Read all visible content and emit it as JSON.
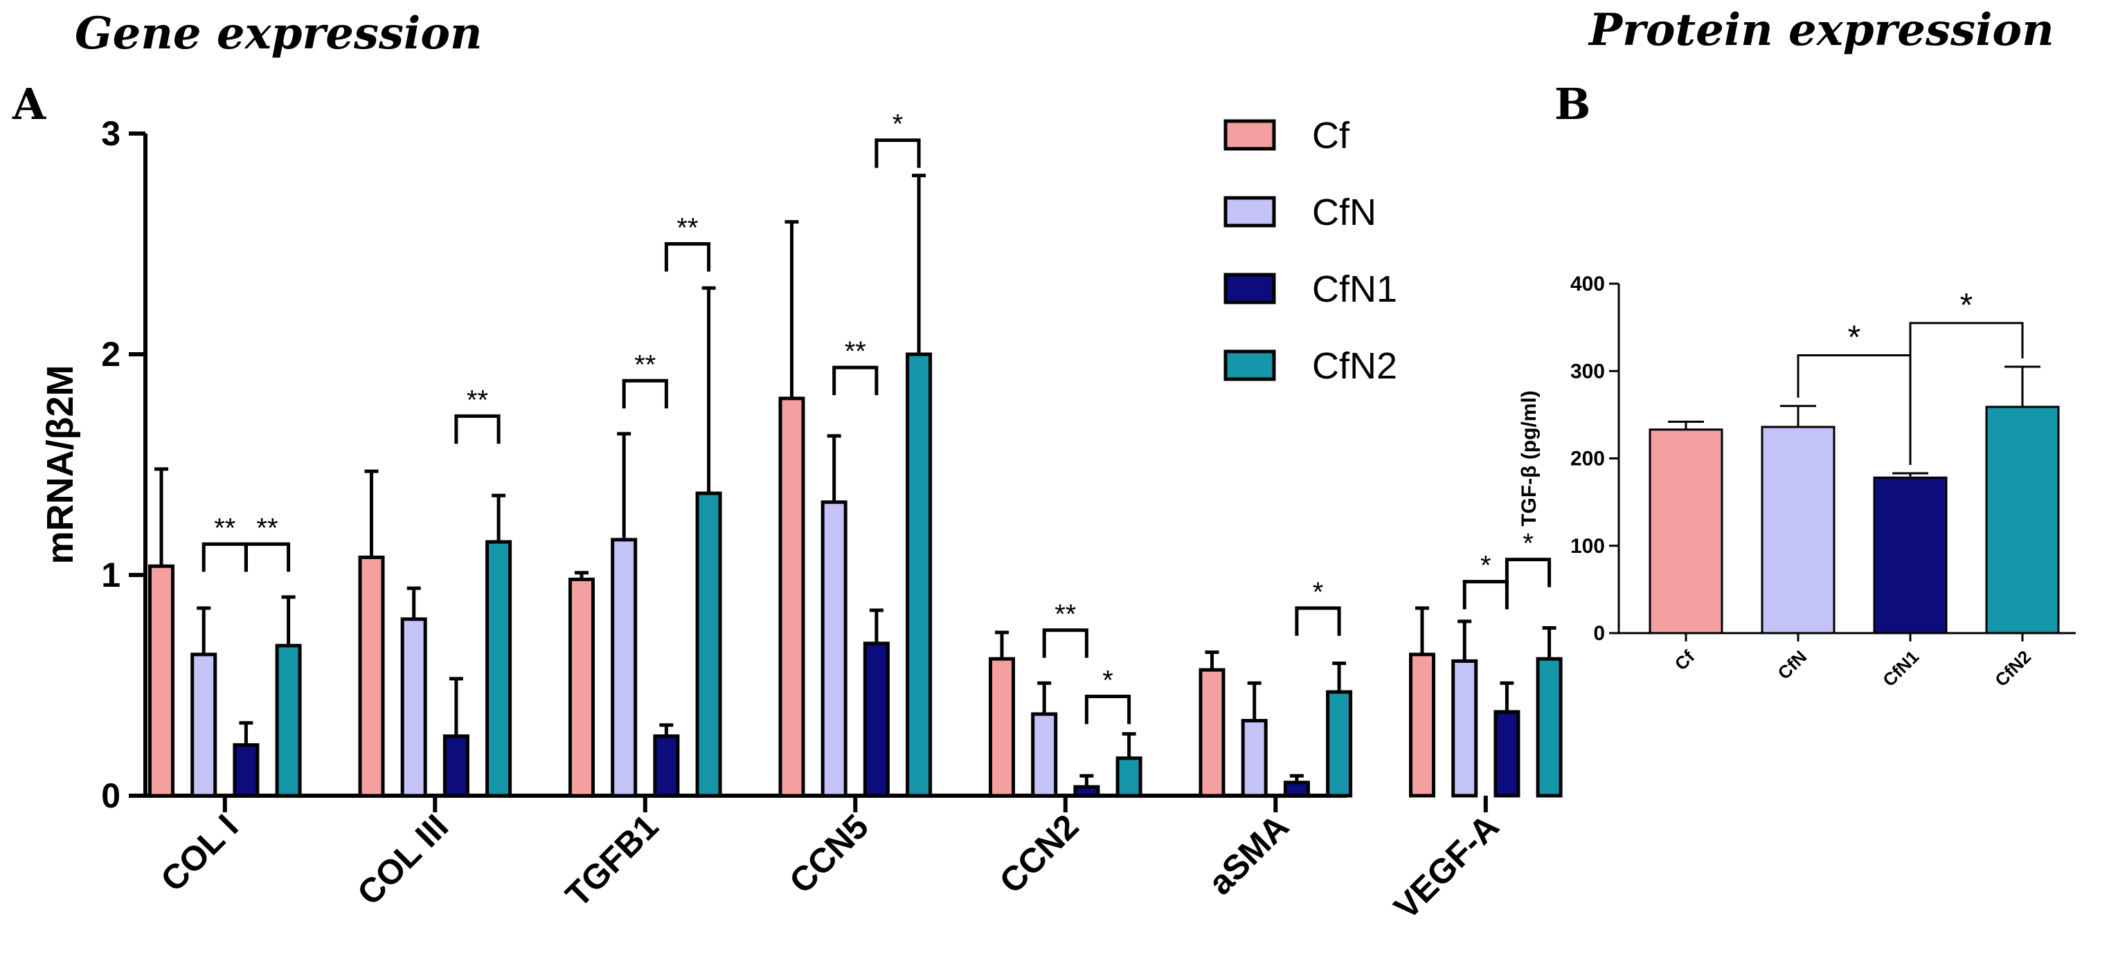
{
  "titles": {
    "gene": "Gene expression",
    "protein": "Protein expression",
    "panel_a": "A",
    "panel_b": "B"
  },
  "colors": {
    "Cf": "#f4a0a0",
    "CfN": "#c4c3f7",
    "CfN1": "#0c0c7c",
    "CfN2": "#1596a9"
  },
  "chart_data": [
    {
      "type": "bar",
      "title": "Gene expression",
      "ylabel": "mRNA/β2M",
      "xlabel": "",
      "ylim": [
        0,
        3
      ],
      "yticks": [
        "0",
        "1",
        "2",
        "3"
      ],
      "categories": [
        "COL I",
        "COL III",
        "TGFB1",
        "CCN5",
        "CCN2",
        "aSMA",
        "VEGF-A"
      ],
      "legend_position": "top-right",
      "series": [
        {
          "name": "Cf",
          "values": [
            1.04,
            1.08,
            0.98,
            1.8,
            0.62,
            0.57,
            0.64
          ],
          "errors": [
            0.44,
            0.39,
            0.03,
            0.8,
            0.12,
            0.08,
            0.21
          ]
        },
        {
          "name": "CfN",
          "values": [
            0.64,
            0.8,
            1.16,
            1.33,
            0.37,
            0.34,
            0.61
          ],
          "errors": [
            0.21,
            0.14,
            0.48,
            0.3,
            0.14,
            0.17,
            0.18
          ]
        },
        {
          "name": "CfN1",
          "values": [
            0.23,
            0.27,
            0.27,
            0.69,
            0.04,
            0.06,
            0.38
          ],
          "errors": [
            0.1,
            0.26,
            0.05,
            0.15,
            0.05,
            0.03,
            0.13
          ]
        },
        {
          "name": "CfN2",
          "values": [
            0.68,
            1.15,
            1.37,
            2.0,
            0.17,
            0.47,
            0.62
          ],
          "errors": [
            0.22,
            0.21,
            0.93,
            0.81,
            0.11,
            0.13,
            0.14
          ]
        }
      ],
      "significance": [
        {
          "category": 0,
          "from": "CfN",
          "to": "CfN1",
          "label": "**",
          "level": 1.14
        },
        {
          "category": 0,
          "from": "CfN1",
          "to": "CfN2",
          "label": "**",
          "level": 1.14
        },
        {
          "category": 1,
          "from": "CfN1",
          "to": "CfN2",
          "label": "**",
          "level": 1.72
        },
        {
          "category": 2,
          "from": "CfN",
          "to": "CfN1",
          "label": "**",
          "level": 1.88
        },
        {
          "category": 2,
          "from": "CfN1",
          "to": "CfN2",
          "label": "**",
          "level": 2.5
        },
        {
          "category": 3,
          "from": "CfN",
          "to": "CfN1",
          "label": "**",
          "level": 1.94
        },
        {
          "category": 3,
          "from": "CfN1",
          "to": "CfN2",
          "label": "*",
          "level": 2.97
        },
        {
          "category": 4,
          "from": "CfN",
          "to": "CfN1",
          "label": "**",
          "level": 0.75
        },
        {
          "category": 4,
          "from": "CfN1",
          "to": "CfN2",
          "label": "*",
          "level": 0.45
        },
        {
          "category": 5,
          "from": "CfN1",
          "to": "CfN2",
          "label": "*",
          "level": 0.85
        },
        {
          "category": 6,
          "from": "CfN",
          "to": "CfN1",
          "label": "*",
          "level": 0.97
        },
        {
          "category": 6,
          "from": "CfN1",
          "to": "CfN2",
          "label": "*",
          "level": 1.07
        }
      ]
    },
    {
      "type": "bar",
      "title": "Protein expression",
      "ylabel": "TGF-β (pg/ml)",
      "xlabel": "",
      "ylim": [
        0,
        400
      ],
      "yticks": [
        "0",
        "100",
        "200",
        "300",
        "400"
      ],
      "categories": [
        "Cf",
        "CfN",
        "CfN1",
        "CfN2"
      ],
      "values": [
        233,
        236,
        178,
        259
      ],
      "errors": [
        9,
        24,
        5,
        46
      ],
      "significance": [
        {
          "from": "CfN",
          "to": "CfN1",
          "label": "*",
          "level": 318
        },
        {
          "from": "CfN1",
          "to": "CfN2",
          "label": "*",
          "level": 355
        }
      ]
    }
  ]
}
